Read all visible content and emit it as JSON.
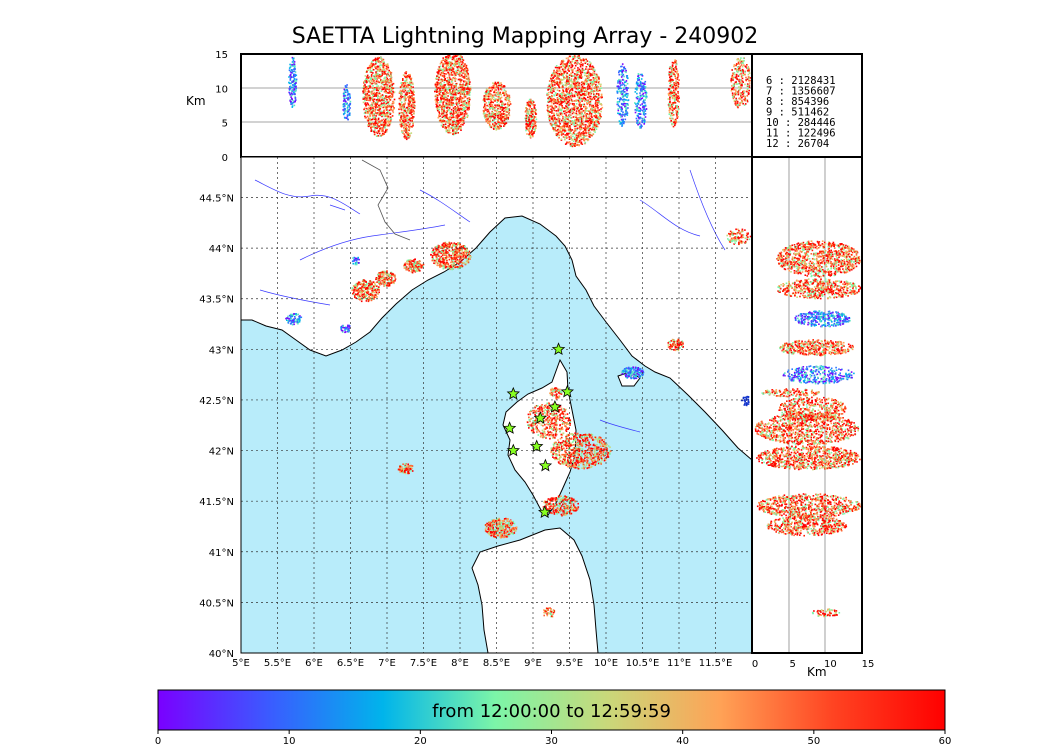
{
  "title": "SAETTA Lightning Mapping Array - 240902",
  "altitude_panel": {
    "ylabel": "Km",
    "yticks": [
      "15",
      "10",
      "5",
      "0"
    ]
  },
  "side_panel": {
    "xlabel": "Km",
    "xticks": [
      "0",
      "5",
      "10",
      "15"
    ]
  },
  "map": {
    "lon_ticks": [
      "5°E",
      "5.5°E",
      "6°E",
      "6.5°E",
      "7°E",
      "7.5°E",
      "8°E",
      "8.5°E",
      "9°E",
      "9.5°E",
      "10°E",
      "10.5°E",
      "11°E",
      "11.5°E"
    ],
    "lat_ticks": [
      "44.5°N",
      "44°N",
      "43.5°N",
      "43°N",
      "42.5°N",
      "42°N",
      "41.5°N",
      "41°N",
      "40.5°N",
      "40°N"
    ],
    "sea_color": "#b8ecfa",
    "land_color": "#ffffff",
    "river_color": "#3b3bff",
    "station_color": "#88ff22",
    "stations": [
      {
        "lon": 9.35,
        "lat": 43.0
      },
      {
        "lon": 8.73,
        "lat": 42.56
      },
      {
        "lon": 9.47,
        "lat": 42.58
      },
      {
        "lon": 9.3,
        "lat": 42.43
      },
      {
        "lon": 9.1,
        "lat": 42.32
      },
      {
        "lon": 8.68,
        "lat": 42.22
      },
      {
        "lon": 8.73,
        "lat": 42.0
      },
      {
        "lon": 9.05,
        "lat": 42.04
      },
      {
        "lon": 9.17,
        "lat": 41.85
      },
      {
        "lon": 9.16,
        "lat": 41.39
      }
    ]
  },
  "legend": {
    "entries": [
      {
        "key": " 6",
        "value": "2128431",
        "color": "#000000"
      },
      {
        "key": " 7",
        "value": "1356607",
        "color": "#ff0000"
      },
      {
        "key": " 8",
        "value": " 854396",
        "color": "#000000"
      },
      {
        "key": " 9",
        "value": " 511462",
        "color": "#000000"
      },
      {
        "key": "10",
        "value": " 284446",
        "color": "#000000"
      },
      {
        "key": "11",
        "value": " 122496",
        "color": "#000000"
      },
      {
        "key": "12",
        "value": "  26704",
        "color": "#000000"
      }
    ]
  },
  "colorbar": {
    "label": "from 12:00:00 to 12:59:59",
    "ticks": [
      "0",
      "10",
      "20",
      "30",
      "40",
      "50",
      "60"
    ],
    "colors": [
      "#7a00ff",
      "#3a5cff",
      "#00b4eb",
      "#7cf5a8",
      "#c9d87a",
      "#ffa256",
      "#ff4422",
      "#ff0000"
    ]
  }
}
